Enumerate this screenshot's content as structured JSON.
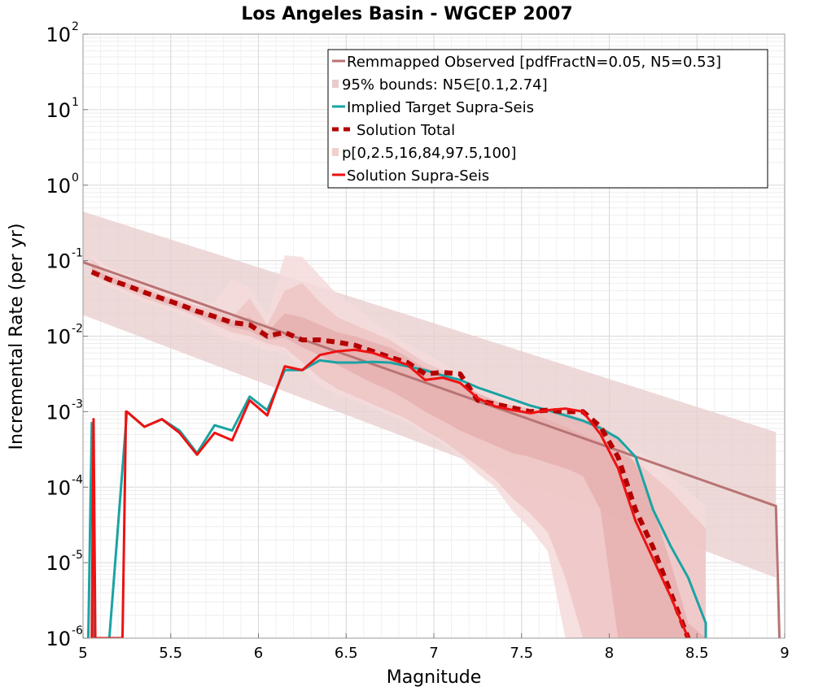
{
  "chart_data": {
    "type": "line",
    "title": "Los Angeles Basin - WGCEP 2007",
    "xlabel": "Magnitude",
    "ylabel": "Incremental Rate (per yr)",
    "xlim": [
      5,
      9
    ],
    "ylim_log10": [
      -6,
      2
    ],
    "y_scale": "log",
    "grid": true,
    "x_ticks": [
      5,
      5.5,
      6,
      6.5,
      7,
      7.5,
      8,
      8.5,
      9
    ],
    "x_tick_labels": [
      "5",
      "5.5",
      "6",
      "6.5",
      "7",
      "7.5",
      "8",
      "8.5",
      "9"
    ],
    "y_ticks_log10": [
      -6,
      -5,
      -4,
      -3,
      -2,
      -1,
      0,
      1,
      2
    ],
    "y_tick_base": "10",
    "y_tick_exponents": [
      "-6",
      "-5",
      "-4",
      "-3",
      "-2",
      "-1",
      "0",
      "1",
      "2"
    ],
    "legend_position": "top-right",
    "legend": [
      {
        "label": "Remmapped Observed [pdfFractN=0.05, N5=0.53]",
        "style": "line",
        "color": "#b87373"
      },
      {
        "label": "95% bounds: N5∈[0.1,2.74]",
        "style": "band",
        "color": "#e8cccc"
      },
      {
        "label": "Implied Target Supra-Seis",
        "style": "line",
        "color": "#1aa3a3"
      },
      {
        "label": "Solution Total",
        "style": "dashed",
        "color": "#b30000"
      },
      {
        "label": "p[0,2.5,16,84,97.5,100]",
        "style": "band",
        "color": "#f2cfcf"
      },
      {
        "label": "Solution Supra-Seis",
        "style": "line",
        "color": "#ee1111"
      }
    ],
    "series": [
      {
        "name": "Remmapped Observed",
        "color": "#b87373",
        "x": [
          5.0,
          8.95,
          8.97
        ],
        "log10_y": [
          -1.02,
          -4.25,
          -6.0
        ]
      },
      {
        "name": "95% bounds",
        "type": "band",
        "color": "#e8cccc",
        "x": [
          5.0,
          8.95
        ],
        "log10_upper": [
          -0.35,
          -3.27
        ],
        "log10_lower": [
          -1.72,
          -5.2
        ]
      },
      {
        "name": "p[0,100]",
        "type": "band",
        "color": "#f5dada",
        "x": [
          5.05,
          5.15,
          5.25,
          5.35,
          5.45,
          5.55,
          5.65,
          5.75,
          5.85,
          5.95,
          6.05,
          6.15,
          6.25,
          6.35,
          6.45,
          6.55,
          6.65,
          6.75,
          6.85,
          6.95,
          7.05,
          7.15,
          7.25,
          7.35,
          7.45,
          7.55,
          7.65,
          7.75,
          7.85,
          7.95,
          8.05,
          8.15,
          8.25,
          8.35,
          8.45,
          8.55
        ],
        "log10_upper": [
          -0.92,
          -1.1,
          -1.18,
          -1.28,
          -1.38,
          -1.45,
          -1.55,
          -1.55,
          -1.25,
          -1.35,
          -1.72,
          -0.93,
          -0.95,
          -1.2,
          -1.45,
          -1.6,
          -1.8,
          -1.95,
          -2.1,
          -2.22,
          -2.35,
          -2.55,
          -2.65,
          -2.75,
          -2.85,
          -2.92,
          -3.05,
          -3.12,
          -3.2,
          -3.3,
          -3.42,
          -3.5,
          -3.65,
          -3.85,
          -4.05,
          -4.25
        ],
        "log10_lower": [
          -1.22,
          -1.35,
          -1.45,
          -1.55,
          -1.62,
          -1.7,
          -1.8,
          -1.95,
          -2.05,
          -2.1,
          -2.2,
          -2.2,
          -2.45,
          -2.65,
          -2.78,
          -2.85,
          -2.95,
          -3.05,
          -3.15,
          -3.3,
          -3.42,
          -3.6,
          -3.82,
          -4.0,
          -4.32,
          -4.55,
          -4.85,
          -6.0,
          -6.0,
          -6.0,
          -6.0,
          -6.0,
          -6.0,
          -6.0,
          -6.0,
          -6.0
        ]
      },
      {
        "name": "p[2.5,97.5]",
        "type": "band",
        "color": "#ebb8b8",
        "x": [
          5.05,
          5.15,
          5.25,
          5.35,
          5.45,
          5.55,
          5.65,
          5.75,
          5.85,
          5.95,
          6.05,
          6.15,
          6.25,
          6.35,
          6.45,
          6.55,
          6.65,
          6.75,
          6.85,
          6.95,
          7.05,
          7.15,
          7.25,
          7.35,
          7.45,
          7.55,
          7.65,
          7.75,
          7.85,
          7.95,
          8.05,
          8.15,
          8.25,
          8.35,
          8.45,
          8.55
        ],
        "log10_upper": [
          -0.98,
          -1.18,
          -1.25,
          -1.35,
          -1.45,
          -1.52,
          -1.6,
          -1.65,
          -1.75,
          -1.5,
          -1.85,
          -1.4,
          -1.3,
          -1.55,
          -1.75,
          -1.85,
          -1.95,
          -2.05,
          -2.2,
          -2.35,
          -2.45,
          -2.6,
          -2.75,
          -2.85,
          -2.95,
          -3.0,
          -3.1,
          -3.2,
          -3.3,
          -3.4,
          -3.55,
          -3.65,
          -3.85,
          -4.05,
          -4.3,
          -4.55
        ],
        "log10_lower": [
          -1.2,
          -1.3,
          -1.4,
          -1.5,
          -1.58,
          -1.65,
          -1.75,
          -1.85,
          -1.95,
          -2.0,
          -2.1,
          -2.15,
          -2.35,
          -2.55,
          -2.7,
          -2.8,
          -2.9,
          -3.0,
          -3.1,
          -3.25,
          -3.38,
          -3.55,
          -3.72,
          -3.9,
          -4.15,
          -4.35,
          -4.6,
          -5.2,
          -6.0,
          -6.0,
          -6.0,
          -6.0,
          -6.0,
          -6.0,
          -6.0,
          -6.0
        ]
      },
      {
        "name": "p[16,84]",
        "type": "band",
        "color": "#dd9999",
        "x": [
          5.05,
          5.15,
          5.25,
          5.35,
          5.45,
          5.55,
          5.65,
          5.75,
          5.85,
          5.95,
          6.05,
          6.15,
          6.25,
          6.35,
          6.45,
          6.55,
          6.65,
          6.75,
          6.85,
          6.95,
          7.05,
          7.15,
          7.25,
          7.35,
          7.45,
          7.55,
          7.65,
          7.75,
          7.85,
          7.95,
          8.05,
          8.15,
          8.25,
          8.35,
          8.45,
          8.55
        ],
        "log10_upper": [
          -1.08,
          -1.22,
          -1.3,
          -1.4,
          -1.48,
          -1.56,
          -1.65,
          -1.73,
          -1.8,
          -1.75,
          -1.95,
          -1.7,
          -1.75,
          -1.85,
          -1.95,
          -2.0,
          -2.08,
          -2.15,
          -2.28,
          -2.42,
          -2.5,
          -2.62,
          -2.76,
          -2.86,
          -2.92,
          -2.96,
          -3.0,
          -3.02,
          -3.1,
          -3.18,
          -3.35,
          -3.7,
          -4.3,
          -5.0,
          -5.8,
          -6.0
        ],
        "log10_lower": [
          -1.17,
          -1.28,
          -1.36,
          -1.45,
          -1.55,
          -1.62,
          -1.72,
          -1.8,
          -1.88,
          -1.93,
          -2.05,
          -2.02,
          -2.15,
          -2.25,
          -2.38,
          -2.5,
          -2.62,
          -2.72,
          -2.85,
          -3.0,
          -3.12,
          -3.25,
          -3.35,
          -3.45,
          -3.55,
          -3.6,
          -3.68,
          -3.75,
          -3.85,
          -4.3,
          -6.0,
          -6.0,
          -6.0,
          -6.0,
          -6.0,
          -6.0
        ]
      },
      {
        "name": "Implied Target Supra-Seis",
        "color": "#1aa3a3",
        "x": [
          5.03,
          5.05,
          5.06,
          5.15,
          5.25,
          5.35,
          5.45,
          5.55,
          5.65,
          5.75,
          5.85,
          5.95,
          6.05,
          6.15,
          6.25,
          6.35,
          6.45,
          6.55,
          6.65,
          6.75,
          6.85,
          6.95,
          7.05,
          7.15,
          7.25,
          7.35,
          7.45,
          7.55,
          7.65,
          7.75,
          7.85,
          7.95,
          8.05,
          8.15,
          8.25,
          8.35,
          8.45,
          8.55,
          8.55
        ],
        "log10_y": [
          -6.0,
          -3.15,
          -6.0,
          -6.0,
          -3.0,
          -3.2,
          -3.1,
          -3.25,
          -3.55,
          -3.18,
          -3.25,
          -2.8,
          -2.98,
          -2.45,
          -2.45,
          -2.32,
          -2.35,
          -2.35,
          -2.34,
          -2.35,
          -2.4,
          -2.45,
          -2.52,
          -2.58,
          -2.68,
          -2.76,
          -2.84,
          -2.92,
          -2.98,
          -3.05,
          -3.12,
          -3.22,
          -3.35,
          -3.6,
          -4.3,
          -4.78,
          -5.2,
          -5.8,
          -6.0
        ]
      },
      {
        "name": "Solution Total",
        "color": "#b30000",
        "x": [
          5.05,
          5.15,
          5.25,
          5.35,
          5.45,
          5.55,
          5.65,
          5.75,
          5.85,
          5.95,
          6.05,
          6.15,
          6.25,
          6.35,
          6.45,
          6.55,
          6.65,
          6.75,
          6.85,
          6.95,
          7.05,
          7.15,
          7.25,
          7.35,
          7.45,
          7.55,
          7.65,
          7.75,
          7.85,
          7.95,
          8.05,
          8.15,
          8.25,
          8.35,
          8.45
        ],
        "log10_y": [
          -1.15,
          -1.25,
          -1.33,
          -1.42,
          -1.5,
          -1.58,
          -1.67,
          -1.74,
          -1.82,
          -1.85,
          -2.0,
          -1.95,
          -2.05,
          -2.05,
          -2.08,
          -2.12,
          -2.2,
          -2.28,
          -2.35,
          -2.5,
          -2.48,
          -2.5,
          -2.85,
          -2.9,
          -2.95,
          -3.0,
          -2.98,
          -3.0,
          -3.0,
          -3.2,
          -3.6,
          -4.3,
          -4.8,
          -5.4,
          -6.0
        ]
      },
      {
        "name": "Solution Supra-Seis",
        "color": "#ee1111",
        "x": [
          5.05,
          5.06,
          5.07,
          5.225,
          5.245,
          5.25,
          5.35,
          5.45,
          5.55,
          5.65,
          5.75,
          5.85,
          5.95,
          6.05,
          6.15,
          6.25,
          6.35,
          6.45,
          6.55,
          6.65,
          6.75,
          6.85,
          6.95,
          7.05,
          7.15,
          7.25,
          7.35,
          7.45,
          7.55,
          7.65,
          7.75,
          7.85,
          7.95,
          8.05,
          8.15,
          8.25,
          8.35,
          8.45
        ],
        "log10_y": [
          -6.0,
          -3.1,
          -6.0,
          -6.0,
          -3.0,
          -3.0,
          -3.2,
          -3.1,
          -3.28,
          -3.57,
          -3.28,
          -3.38,
          -2.85,
          -3.05,
          -2.4,
          -2.45,
          -2.25,
          -2.2,
          -2.18,
          -2.22,
          -2.3,
          -2.38,
          -2.58,
          -2.55,
          -2.62,
          -2.82,
          -2.93,
          -2.98,
          -3.02,
          -2.98,
          -2.96,
          -3.0,
          -3.3,
          -3.75,
          -4.45,
          -4.95,
          -5.45,
          -6.0
        ]
      }
    ]
  }
}
